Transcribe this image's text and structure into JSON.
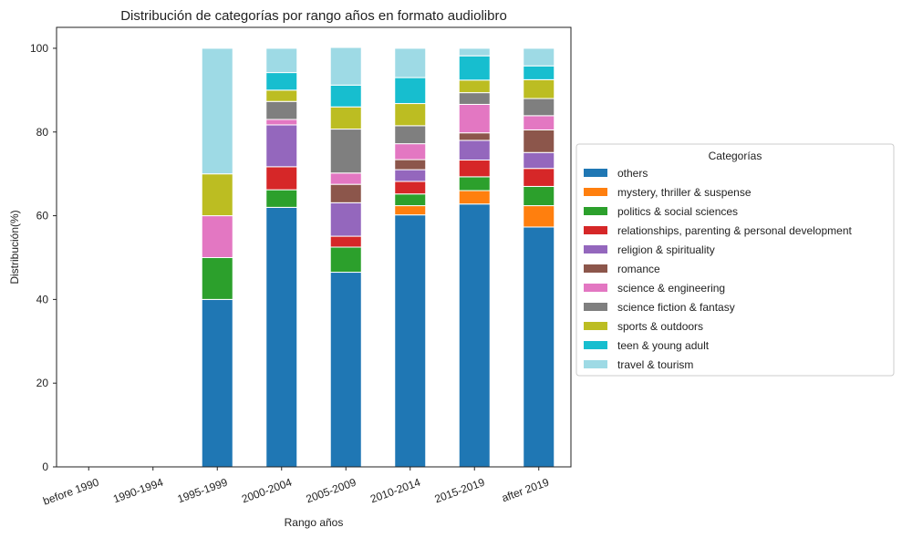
{
  "chart_data": {
    "type": "bar",
    "stacked": true,
    "title": "Distribución de categorías por rango años en formato audiolibro",
    "xlabel": "Rango años",
    "ylabel": "Distribución(%)",
    "ylim": [
      0,
      105
    ],
    "yticks": [
      0,
      20,
      40,
      60,
      80,
      100
    ],
    "grid": false,
    "legend_title": "Categorías",
    "legend_position": "center-right outside",
    "categories": [
      "before 1990",
      "1990-1994",
      "1995-1999",
      "2000-2004",
      "2005-2009",
      "2010-2014",
      "2015-2019",
      "after 2019"
    ],
    "series": [
      {
        "name": "others",
        "color": "#1f77b4",
        "values": [
          0,
          0,
          40,
          62,
          46.5,
          60.2,
          62.8,
          57.3
        ]
      },
      {
        "name": "mystery, thriller & suspense",
        "color": "#ff7f0e",
        "values": [
          0,
          0,
          0,
          0,
          0,
          2.2,
          3.2,
          5.1
        ]
      },
      {
        "name": "politics & social sciences",
        "color": "#2ca02c",
        "values": [
          0,
          0,
          10,
          4.2,
          6,
          2.8,
          3.3,
          4.6
        ]
      },
      {
        "name": "relationships, parenting & personal development",
        "color": "#d62728",
        "values": [
          0,
          0,
          0,
          5.5,
          2.6,
          3.0,
          4.0,
          4.3
        ]
      },
      {
        "name": "religion & spirituality",
        "color": "#9467bd",
        "values": [
          0,
          0,
          0,
          10,
          8,
          2.8,
          4.7,
          3.8
        ]
      },
      {
        "name": "romance",
        "color": "#8c564b",
        "values": [
          0,
          0,
          0,
          0,
          4.4,
          2.4,
          1.8,
          5.4
        ]
      },
      {
        "name": "science & engineering",
        "color": "#e377c2",
        "values": [
          0,
          0,
          10,
          1.3,
          2.7,
          3.8,
          6.8,
          3.4
        ]
      },
      {
        "name": "science fiction & fantasy",
        "color": "#7f7f7f",
        "values": [
          0,
          0,
          0,
          4.3,
          10.5,
          4.3,
          2.8,
          4.1
        ]
      },
      {
        "name": "sports & outdoors",
        "color": "#bcbd22",
        "values": [
          0,
          0,
          10,
          2.7,
          5.3,
          5.3,
          3.0,
          4.5
        ]
      },
      {
        "name": "teen & young adult",
        "color": "#17becf",
        "values": [
          0,
          0,
          0,
          4.2,
          5.2,
          6.2,
          5.8,
          3.3
        ]
      },
      {
        "name": "travel & tourism",
        "color": "#9edae5",
        "values": [
          0,
          0,
          30,
          5.8,
          9,
          7.0,
          1.8,
          4.2
        ]
      }
    ]
  }
}
